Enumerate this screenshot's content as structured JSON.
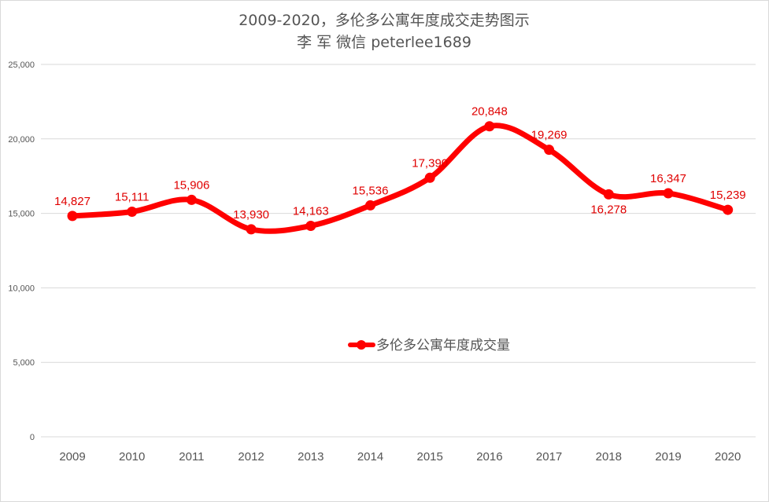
{
  "chart_data": {
    "type": "line",
    "title": "2009-2020，多伦多公寓年度成交走势图示",
    "subtitle": "李 军  微信  peterlee1689",
    "categories": [
      "2009",
      "2010",
      "2011",
      "2012",
      "2013",
      "2014",
      "2015",
      "2016",
      "2017",
      "2018",
      "2019",
      "2020"
    ],
    "series": [
      {
        "name": "多伦多公寓年度成交量",
        "values": [
          14827,
          15111,
          15906,
          13930,
          14163,
          15536,
          17390,
          20848,
          19269,
          16278,
          16347,
          15239
        ],
        "labels": [
          "14,827",
          "15,111",
          "15,906",
          "13,930",
          "14,163",
          "15,536",
          "17,390",
          "20,848",
          "19,269",
          "16,278",
          "16,347",
          "15,239"
        ],
        "color": "#ff0000",
        "smooth": true,
        "markers": true
      }
    ],
    "ylim": [
      0,
      25000
    ],
    "yticks": [
      0,
      5000,
      10000,
      15000,
      20000,
      25000
    ],
    "ytick_labels": [
      "0",
      "5,000",
      "10,000",
      "15,000",
      "20,000",
      "25,000"
    ],
    "xlabel": "",
    "ylabel": "",
    "grid": true,
    "legend": "inside-center",
    "label_color": "#e00000",
    "grid_color": "#d9d9d9",
    "text_color": "#555555"
  }
}
